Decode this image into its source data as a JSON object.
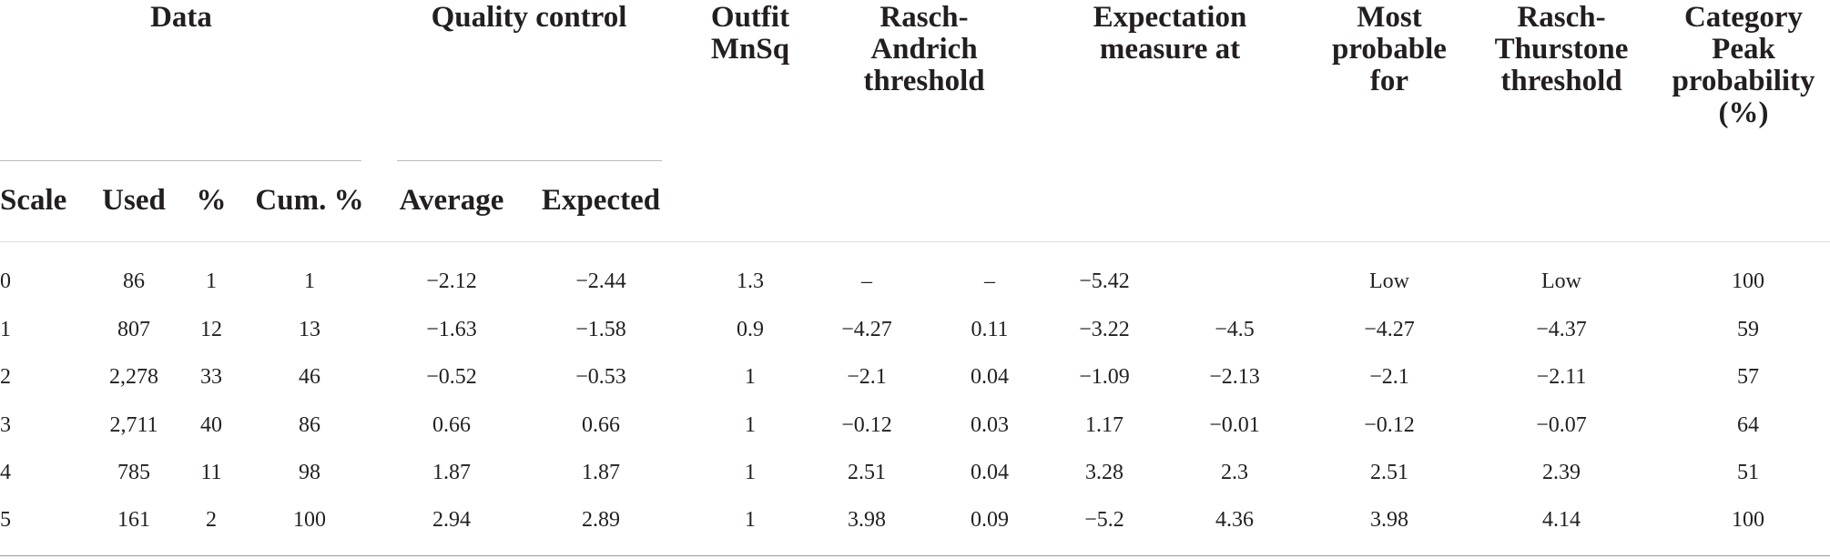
{
  "table": {
    "header_groups": [
      {
        "lines": [
          "Data"
        ]
      },
      {
        "lines": [
          "Quality control"
        ]
      },
      {
        "lines": [
          "Outfit",
          "MnSq"
        ]
      },
      {
        "lines": [
          "Rasch-",
          "Andrich",
          "threshold"
        ]
      },
      {
        "lines": [
          "Expectation",
          "measure at"
        ]
      },
      {
        "lines": [
          "Most",
          "probable",
          "for"
        ]
      },
      {
        "lines": [
          "Rasch-",
          "Thurstone",
          "threshold"
        ]
      },
      {
        "lines": [
          "Category",
          "Peak",
          "probability",
          "(%)"
        ]
      }
    ],
    "subheaders": [
      "Scale",
      "Used",
      "%",
      "Cum. %",
      "Average",
      "Expected"
    ],
    "rows": [
      [
        "0",
        "86",
        "1",
        "1",
        "−2.12",
        "−2.44",
        "1.3",
        "–",
        "–",
        "−5.42",
        null,
        "Low",
        "Low",
        "100"
      ],
      [
        "1",
        "807",
        "12",
        "13",
        "−1.63",
        "−1.58",
        "0.9",
        "−4.27",
        "0.11",
        "−3.22",
        "−4.5",
        "−4.27",
        "−4.37",
        "59"
      ],
      [
        "2",
        "2,278",
        "33",
        "46",
        "−0.52",
        "−0.53",
        "1",
        "−2.1",
        "0.04",
        "−1.09",
        "−2.13",
        "−2.1",
        "−2.11",
        "57"
      ],
      [
        "3",
        "2,711",
        "40",
        "86",
        "0.66",
        "0.66",
        "1",
        "−0.12",
        "0.03",
        "1.17",
        "−0.01",
        "−0.12",
        "−0.07",
        "64"
      ],
      [
        "4",
        "785",
        "11",
        "98",
        "1.87",
        "1.87",
        "1",
        "2.51",
        "0.04",
        "3.28",
        "2.3",
        "2.51",
        "2.39",
        "51"
      ],
      [
        "5",
        "161",
        "2",
        "100",
        "2.94",
        "2.89",
        "1",
        "3.98",
        "0.09",
        "−5.2",
        "4.36",
        "3.98",
        "4.14",
        "100"
      ]
    ]
  }
}
